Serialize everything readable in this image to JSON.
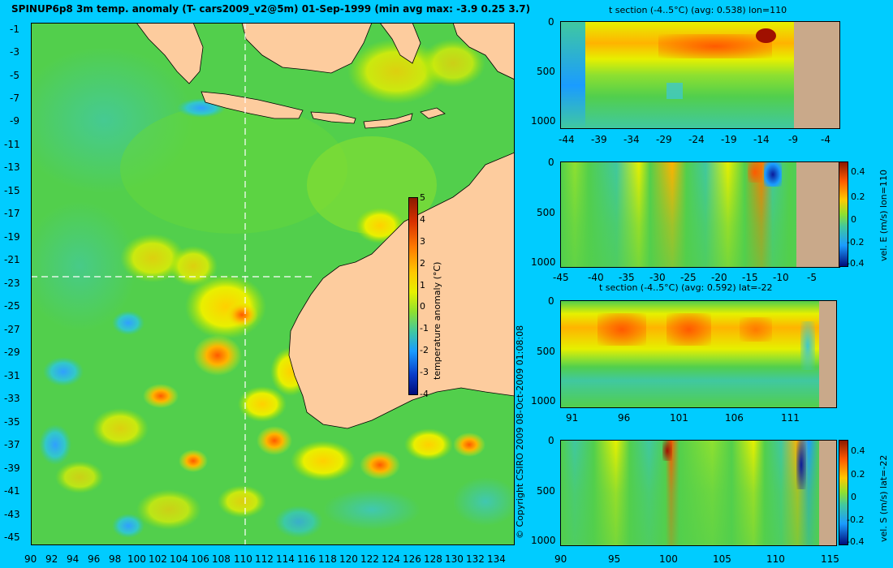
{
  "title": "SPINUP6p8 3m temp. anomaly (T- cars2009_v2@5m) 01-Sep-1999 (min avg max: -3.9 0.25 3.7)",
  "copyright": "© Copyright CSIRO 2009   08-Oct-2009 01:08:08",
  "colors": {
    "background": "#00ccff",
    "land": "#fdcc9e",
    "section_land": "#c9a98a"
  },
  "map": {
    "lat_ticks": [
      "-1",
      "-3",
      "-5",
      "-7",
      "-9",
      "-11",
      "-13",
      "-15",
      "-17",
      "-19",
      "-21",
      "-23",
      "-25",
      "-27",
      "-29",
      "-31",
      "-33",
      "-35",
      "-37",
      "-39",
      "-41",
      "-43",
      "-45"
    ],
    "lon_ticks": [
      "90",
      "92",
      "94",
      "96",
      "98",
      "100",
      "102",
      "104",
      "106",
      "108",
      "110",
      "112",
      "114",
      "116",
      "118",
      "120",
      "122",
      "124",
      "126",
      "128",
      "130",
      "132",
      "134"
    ],
    "colorbar": {
      "label": "temperature anomaly (°C)",
      "ticks": [
        "5",
        "4",
        "3",
        "2",
        "1",
        "0",
        "-1",
        "-2",
        "-3",
        "-4"
      ]
    }
  },
  "panels": [
    {
      "title": "t section (-4..5°C) (avg: 0.538) lon=110",
      "depth_ticks": [
        "0",
        "500",
        "1000"
      ],
      "x_ticks": [
        "-44",
        "-39",
        "-34",
        "-29",
        "-24",
        "-19",
        "-14",
        "-9",
        "-4"
      ]
    },
    {
      "title": "",
      "depth_ticks": [
        "0",
        "500",
        "1000"
      ],
      "x_ticks": [
        "-45",
        "-40",
        "-35",
        "-30",
        "-25",
        "-20",
        "-15",
        "-10",
        "-5"
      ],
      "colorbar": {
        "label": "vel. E (m/s) lon=110",
        "ticks": [
          "0.4",
          "0.2",
          "0",
          "-0.2",
          "-0.4"
        ]
      }
    },
    {
      "title": "t section (-4..5°C) (avg: 0.592) lat=-22",
      "depth_ticks": [
        "0",
        "500",
        "1000"
      ],
      "x_ticks": [
        "91",
        "96",
        "101",
        "106",
        "111"
      ]
    },
    {
      "title": "",
      "depth_ticks": [
        "0",
        "500",
        "1000"
      ],
      "x_ticks": [
        "90",
        "95",
        "100",
        "105",
        "110",
        "115"
      ],
      "colorbar": {
        "label": "vel. S (m/s) lat=-22",
        "ticks": [
          "0.4",
          "0.2",
          "0",
          "-0.2",
          "-0.4"
        ]
      }
    }
  ]
}
